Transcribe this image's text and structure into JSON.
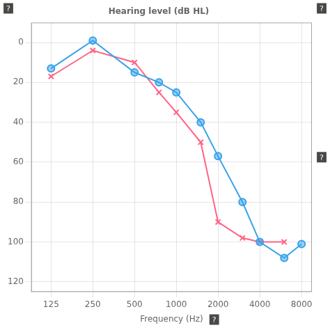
{
  "chart_data": {
    "type": "line",
    "title": "Hearing level (dB HL)",
    "x_label": "Frequency (Hz)",
    "annotations": [
      "?",
      "?",
      "?",
      "?"
    ],
    "x": [
      125,
      250,
      500,
      750,
      1000,
      1500,
      2000,
      3000,
      4000,
      6000,
      8000
    ],
    "series": [
      {
        "values": [
          13,
          -1,
          15,
          20,
          25,
          40,
          57,
          80,
          100,
          108,
          101
        ],
        "marker": "circle"
      },
      {
        "values": [
          17,
          4,
          10,
          25,
          35,
          50,
          90,
          98,
          100,
          100,
          null
        ],
        "marker": "x"
      }
    ],
    "log": "x",
    "xlim": [
      90,
      9500
    ],
    "xticks": [
      125,
      250,
      500,
      1000,
      2000,
      4000,
      8000
    ],
    "ylim": [
      125,
      -10
    ],
    "yticks": [
      0,
      20,
      40,
      60,
      80,
      100,
      120
    ],
    "grid": true
  }
}
